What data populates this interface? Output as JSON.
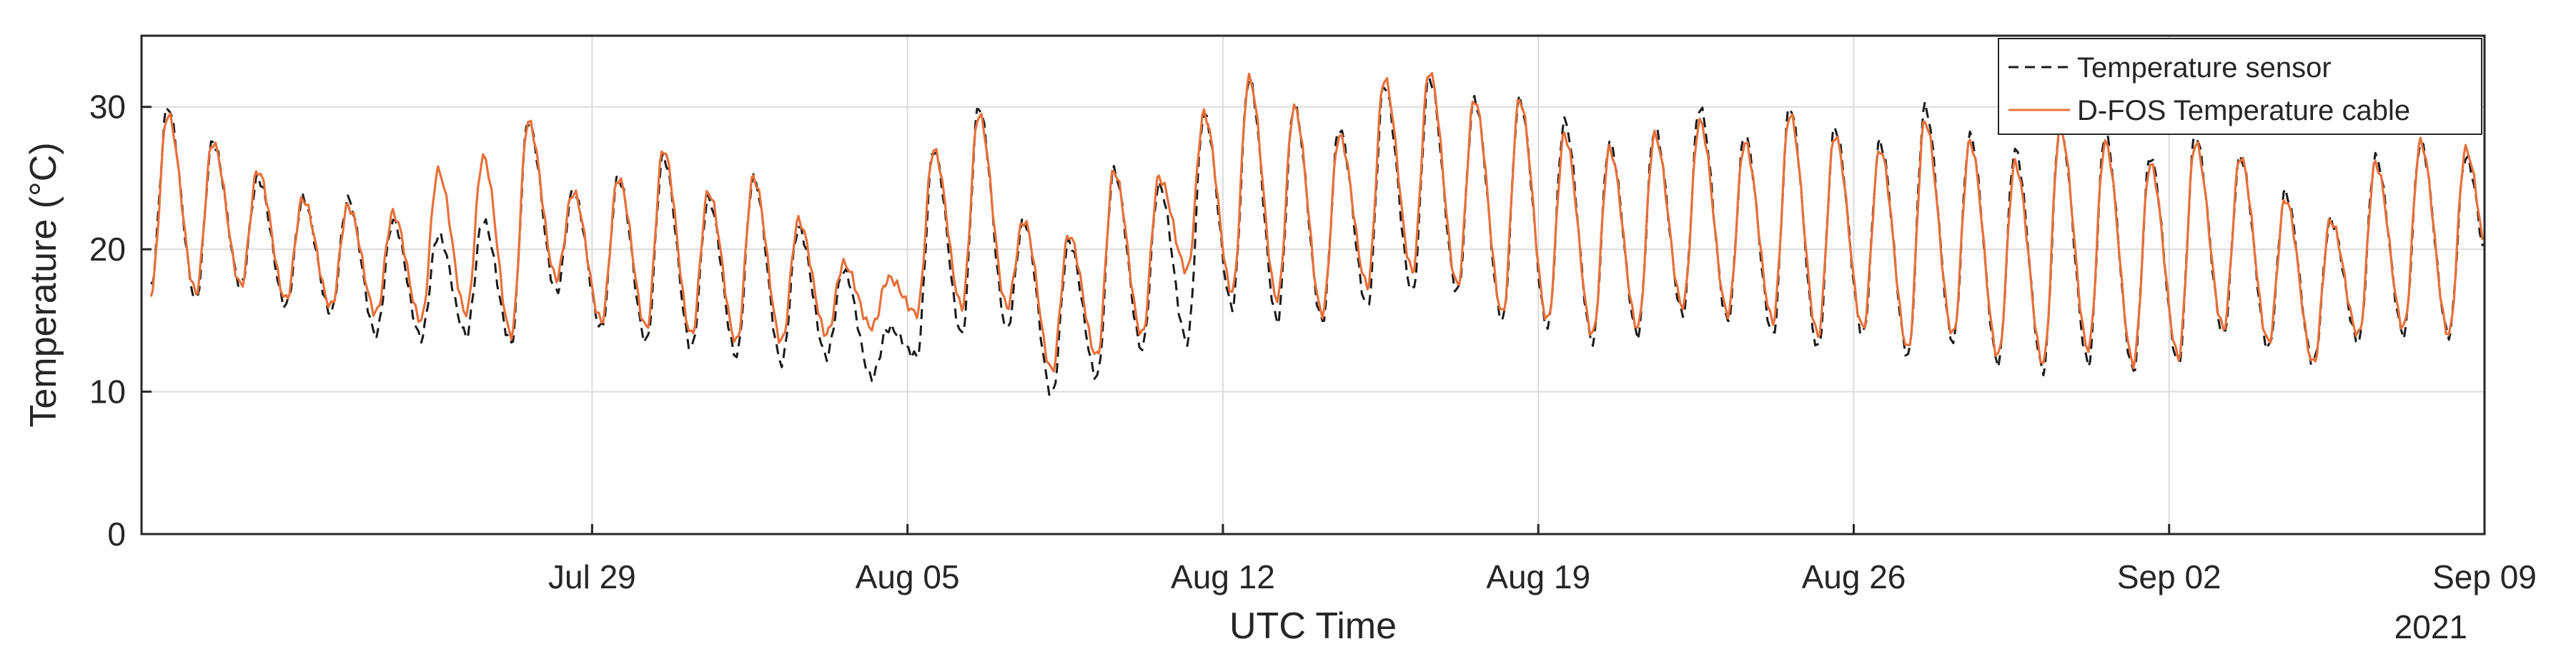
{
  "chart_data": {
    "type": "line",
    "title": "",
    "xlabel": "UTC Time",
    "ylabel": "Temperature (°C)",
    "year_label": "2021",
    "xlim": [
      "2021-07-19",
      "2021-09-09"
    ],
    "ylim": [
      0,
      35
    ],
    "grid": true,
    "legend_position": "top-right",
    "x_ticks": [
      {
        "date": "2021-07-29",
        "label": "Jul 29"
      },
      {
        "date": "2021-08-05",
        "label": "Aug 05"
      },
      {
        "date": "2021-08-12",
        "label": "Aug 12"
      },
      {
        "date": "2021-08-19",
        "label": "Aug 19"
      },
      {
        "date": "2021-08-26",
        "label": "Aug 26"
      },
      {
        "date": "2021-09-02",
        "label": "Sep 02"
      },
      {
        "date": "2021-09-09",
        "label": "Sep 09"
      }
    ],
    "y_ticks": [
      0,
      10,
      20,
      30
    ],
    "series": [
      {
        "name": "Temperature sensor",
        "color": "#1a1a1a",
        "style": "dashed",
        "daily_extremes": [
          {
            "date": "2021-07-19",
            "min": 17.5,
            "max": 30.0
          },
          {
            "date": "2021-07-20",
            "min": 16.5,
            "max": 27.5
          },
          {
            "date": "2021-07-21",
            "min": 17.5,
            "max": 25.0
          },
          {
            "date": "2021-07-22",
            "min": 16.0,
            "max": 23.5
          },
          {
            "date": "2021-07-23",
            "min": 15.5,
            "max": 23.5
          },
          {
            "date": "2021-07-24",
            "min": 14.0,
            "max": 22.0
          },
          {
            "date": "2021-07-25",
            "min": 13.8,
            "max": 21.0
          },
          {
            "date": "2021-07-26",
            "min": 14.0,
            "max": 22.0
          },
          {
            "date": "2021-07-27",
            "min": 13.5,
            "max": 29.0
          },
          {
            "date": "2021-07-28",
            "min": 17.0,
            "max": 24.0
          },
          {
            "date": "2021-07-29",
            "min": 14.5,
            "max": 25.0
          },
          {
            "date": "2021-07-30",
            "min": 13.5,
            "max": 26.5
          },
          {
            "date": "2021-07-31",
            "min": 13.0,
            "max": 23.5
          },
          {
            "date": "2021-08-01",
            "min": 12.5,
            "max": 25.0
          },
          {
            "date": "2021-08-02",
            "min": 12.0,
            "max": 21.5
          },
          {
            "date": "2021-08-03",
            "min": 12.5,
            "max": 18.5
          },
          {
            "date": "2021-08-04",
            "min": 11.0,
            "max": 14.5
          },
          {
            "date": "2021-08-05",
            "min": 12.5,
            "max": 27.0
          },
          {
            "date": "2021-08-06",
            "min": 14.0,
            "max": 30.0
          },
          {
            "date": "2021-08-07",
            "min": 14.5,
            "max": 22.0
          },
          {
            "date": "2021-08-08",
            "min": 9.8,
            "max": 20.5
          },
          {
            "date": "2021-08-09",
            "min": 11.0,
            "max": 25.5
          },
          {
            "date": "2021-08-10",
            "min": 13.0,
            "max": 24.5
          },
          {
            "date": "2021-08-11",
            "min": 13.5,
            "max": 29.5
          },
          {
            "date": "2021-08-12",
            "min": 16.0,
            "max": 32.0
          },
          {
            "date": "2021-08-13",
            "min": 15.0,
            "max": 30.0
          },
          {
            "date": "2021-08-14",
            "min": 15.0,
            "max": 28.5
          },
          {
            "date": "2021-08-15",
            "min": 16.0,
            "max": 31.5
          },
          {
            "date": "2021-08-16",
            "min": 17.0,
            "max": 32.0
          },
          {
            "date": "2021-08-17",
            "min": 17.0,
            "max": 30.5
          },
          {
            "date": "2021-08-18",
            "min": 15.0,
            "max": 30.5
          },
          {
            "date": "2021-08-19",
            "min": 14.5,
            "max": 29.0
          },
          {
            "date": "2021-08-20",
            "min": 13.5,
            "max": 27.5
          },
          {
            "date": "2021-08-21",
            "min": 14.0,
            "max": 28.5
          },
          {
            "date": "2021-08-22",
            "min": 15.5,
            "max": 30.0
          },
          {
            "date": "2021-08-23",
            "min": 15.0,
            "max": 28.0
          },
          {
            "date": "2021-08-24",
            "min": 14.0,
            "max": 30.0
          },
          {
            "date": "2021-08-25",
            "min": 13.0,
            "max": 28.5
          },
          {
            "date": "2021-08-26",
            "min": 14.0,
            "max": 27.5
          },
          {
            "date": "2021-08-27",
            "min": 12.5,
            "max": 30.0
          },
          {
            "date": "2021-08-28",
            "min": 13.5,
            "max": 28.0
          },
          {
            "date": "2021-08-29",
            "min": 12.0,
            "max": 27.0
          },
          {
            "date": "2021-08-30",
            "min": 11.5,
            "max": 28.5
          },
          {
            "date": "2021-08-31",
            "min": 12.0,
            "max": 28.0
          },
          {
            "date": "2021-09-01",
            "min": 11.5,
            "max": 26.5
          },
          {
            "date": "2021-09-02",
            "min": 12.0,
            "max": 28.0
          },
          {
            "date": "2021-09-03",
            "min": 14.0,
            "max": 26.5
          },
          {
            "date": "2021-09-04",
            "min": 13.0,
            "max": 24.0
          },
          {
            "date": "2021-09-05",
            "min": 12.0,
            "max": 22.0
          },
          {
            "date": "2021-09-06",
            "min": 13.5,
            "max": 26.5
          },
          {
            "date": "2021-09-07",
            "min": 14.0,
            "max": 27.5
          },
          {
            "date": "2021-09-08",
            "min": 14.0,
            "max": 26.5
          },
          {
            "date": "2021-09-09",
            "min": 16.5,
            "max": 26.5
          }
        ]
      },
      {
        "name": "D-FOS Temperature cable",
        "color": "#e8703a",
        "style": "solid",
        "daily_extremes": [
          {
            "date": "2021-07-19",
            "min": 17.0,
            "max": 29.5
          },
          {
            "date": "2021-07-20",
            "min": 17.0,
            "max": 27.5
          },
          {
            "date": "2021-07-21",
            "min": 17.5,
            "max": 25.5
          },
          {
            "date": "2021-07-22",
            "min": 16.5,
            "max": 23.5
          },
          {
            "date": "2021-07-23",
            "min": 16.0,
            "max": 23.0
          },
          {
            "date": "2021-07-24",
            "min": 15.5,
            "max": 22.5
          },
          {
            "date": "2021-07-25",
            "min": 15.0,
            "max": 25.5
          },
          {
            "date": "2021-07-26",
            "min": 15.5,
            "max": 26.5
          },
          {
            "date": "2021-07-27",
            "min": 14.0,
            "max": 29.0
          },
          {
            "date": "2021-07-28",
            "min": 18.0,
            "max": 24.0
          },
          {
            "date": "2021-07-29",
            "min": 15.0,
            "max": 25.0
          },
          {
            "date": "2021-07-30",
            "min": 14.5,
            "max": 27.0
          },
          {
            "date": "2021-07-31",
            "min": 14.0,
            "max": 24.0
          },
          {
            "date": "2021-08-01",
            "min": 13.5,
            "max": 25.0
          },
          {
            "date": "2021-08-02",
            "min": 13.5,
            "max": 22.0
          },
          {
            "date": "2021-08-03",
            "min": 14.0,
            "max": 19.0
          },
          {
            "date": "2021-08-04",
            "min": 14.5,
            "max": 18.0
          },
          {
            "date": "2021-08-05",
            "min": 15.5,
            "max": 27.0
          },
          {
            "date": "2021-08-06",
            "min": 16.0,
            "max": 29.5
          },
          {
            "date": "2021-08-07",
            "min": 16.0,
            "max": 22.0
          },
          {
            "date": "2021-08-08",
            "min": 11.5,
            "max": 21.0
          },
          {
            "date": "2021-08-09",
            "min": 12.5,
            "max": 25.5
          },
          {
            "date": "2021-08-10",
            "min": 14.0,
            "max": 25.0
          },
          {
            "date": "2021-08-11",
            "min": 18.5,
            "max": 29.5
          },
          {
            "date": "2021-08-12",
            "min": 17.0,
            "max": 32.0
          },
          {
            "date": "2021-08-13",
            "min": 16.5,
            "max": 30.0
          },
          {
            "date": "2021-08-14",
            "min": 15.5,
            "max": 28.0
          },
          {
            "date": "2021-08-15",
            "min": 17.5,
            "max": 32.0
          },
          {
            "date": "2021-08-16",
            "min": 18.5,
            "max": 32.5
          },
          {
            "date": "2021-08-17",
            "min": 17.5,
            "max": 30.5
          },
          {
            "date": "2021-08-18",
            "min": 15.5,
            "max": 30.5
          },
          {
            "date": "2021-08-19",
            "min": 15.0,
            "max": 28.0
          },
          {
            "date": "2021-08-20",
            "min": 14.0,
            "max": 27.0
          },
          {
            "date": "2021-08-21",
            "min": 14.5,
            "max": 28.0
          },
          {
            "date": "2021-08-22",
            "min": 16.0,
            "max": 29.0
          },
          {
            "date": "2021-08-23",
            "min": 15.5,
            "max": 27.5
          },
          {
            "date": "2021-08-24",
            "min": 15.0,
            "max": 29.5
          },
          {
            "date": "2021-08-25",
            "min": 14.0,
            "max": 28.0
          },
          {
            "date": "2021-08-26",
            "min": 14.5,
            "max": 27.0
          },
          {
            "date": "2021-08-27",
            "min": 13.0,
            "max": 29.0
          },
          {
            "date": "2021-08-28",
            "min": 14.0,
            "max": 27.5
          },
          {
            "date": "2021-08-29",
            "min": 12.5,
            "max": 26.0
          },
          {
            "date": "2021-08-30",
            "min": 12.0,
            "max": 28.5
          },
          {
            "date": "2021-08-31",
            "min": 13.0,
            "max": 27.5
          },
          {
            "date": "2021-09-01",
            "min": 12.0,
            "max": 26.0
          },
          {
            "date": "2021-09-02",
            "min": 12.5,
            "max": 27.5
          },
          {
            "date": "2021-09-03",
            "min": 14.5,
            "max": 26.5
          },
          {
            "date": "2021-09-04",
            "min": 13.5,
            "max": 23.5
          },
          {
            "date": "2021-09-05",
            "min": 12.0,
            "max": 22.0
          },
          {
            "date": "2021-09-06",
            "min": 14.0,
            "max": 26.0
          },
          {
            "date": "2021-09-07",
            "min": 14.5,
            "max": 27.5
          },
          {
            "date": "2021-09-08",
            "min": 14.0,
            "max": 27.0
          },
          {
            "date": "2021-09-09",
            "min": 17.0,
            "max": 26.5
          }
        ]
      }
    ]
  }
}
